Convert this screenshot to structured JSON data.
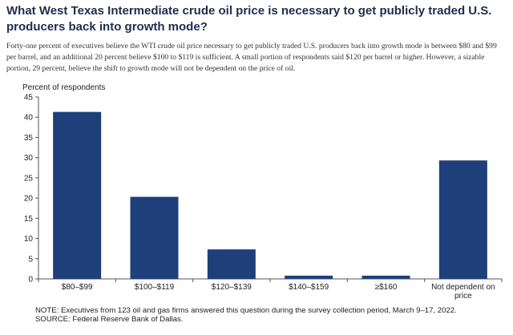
{
  "title": "What West Texas Intermediate crude oil price is necessary to get publicly traded U.S. producers back into growth mode?",
  "subtitle": "Forty-one percent of executives believe the WTI crude oil price necessary to get publicly traded U.S. producers back into growth mode is between $80 and $99 per barrel, and an additional 20 percent believe $100 to $119 is sufficient. A small portion of respondents said $120 per barrel or higher. However, a sizable portion, 29 percent, believe the shift to growth mode will not be dependent on the price of oil.",
  "note": "NOTE:  Executives  from 123 oil and gas firms answered this question during the survey collection period, March 9–17, 2022.",
  "source": "SOURCE:  Federal Reserve Bank of Dallas.",
  "colors": {
    "bar": "#1f3f7a",
    "axis": "#555555"
  },
  "chart_data": {
    "type": "bar",
    "title": "",
    "ylabel": "Percent of respondents",
    "xlabel": "",
    "categories": [
      "$80–$99",
      "$100–$119",
      "$120–$139",
      "$140–$159",
      "≥$160",
      [
        "Not dependent on",
        "price"
      ]
    ],
    "values": [
      41.3,
      20.3,
      7.3,
      0.8,
      0.8,
      29.3
    ],
    "ylim": [
      0,
      45
    ],
    "yticks": [
      0,
      5,
      10,
      15,
      20,
      25,
      30,
      35,
      40,
      45
    ],
    "grid": false
  }
}
